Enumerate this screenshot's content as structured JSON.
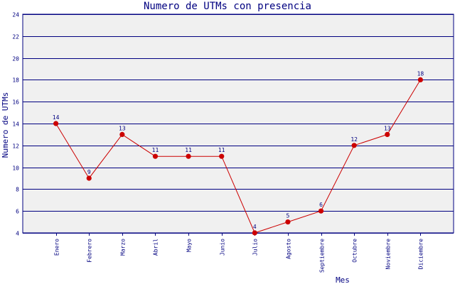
{
  "chart_data": {
    "type": "line",
    "title": "Numero de UTMs con presencia",
    "xlabel": "Mes",
    "ylabel": "Numero de UTMs",
    "categories": [
      "Enero",
      "Febrero",
      "Marzo",
      "Abril",
      "Mayo",
      "Junio",
      "Julio",
      "Agosto",
      "Septiembre",
      "Octubre",
      "Noviembre",
      "Diciembre"
    ],
    "series": [
      {
        "values": [
          14,
          9,
          13,
          11,
          11,
          11,
          4,
          5,
          6,
          12,
          13,
          18
        ]
      }
    ],
    "ylim": [
      4,
      24
    ],
    "yticks": [
      4,
      6,
      8,
      10,
      12,
      14,
      16,
      18,
      20,
      22,
      24
    ],
    "grid": "horizontal",
    "colors": {
      "plot_background": "#f0f0f0",
      "grid": "#000080",
      "line": "#cc0000",
      "marker": "#cc0000",
      "text": "#000080"
    }
  }
}
